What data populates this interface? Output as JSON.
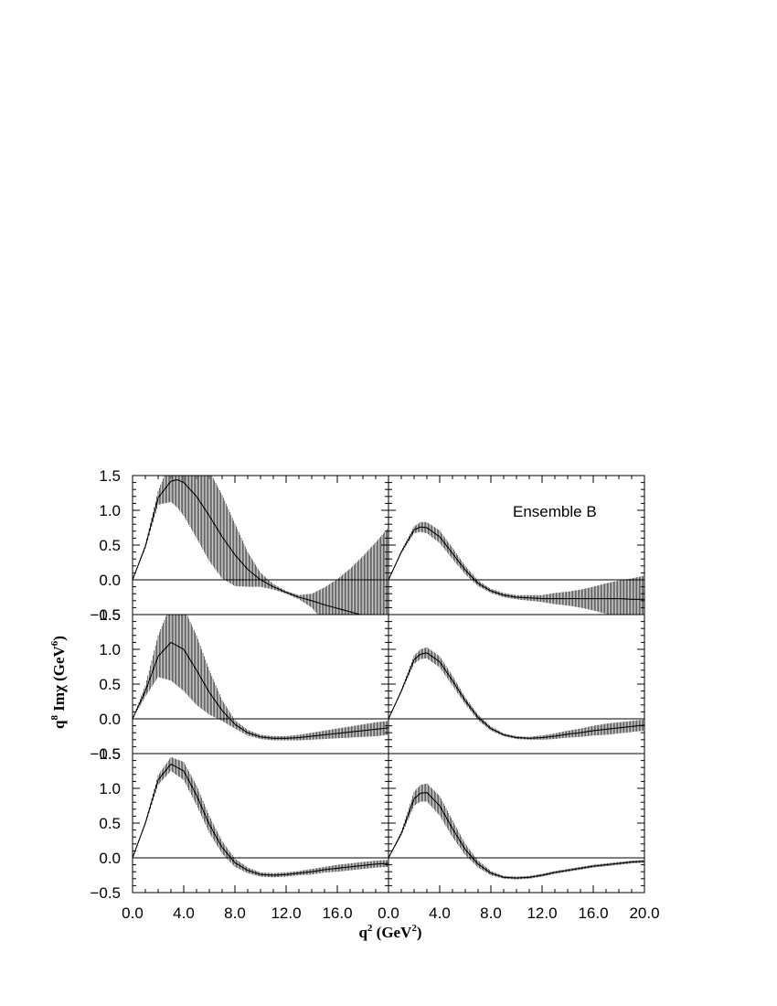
{
  "chart_data": {
    "type": "line",
    "layout": "3x2 grid of panels sharing axes",
    "xlabel": {
      "base": "q",
      "sup": "2",
      "rest": " (GeV",
      "sup2": "2",
      "end": ")"
    },
    "ylabel": {
      "base": "q",
      "sup": "8",
      "rest": " Imχ (GeV",
      "sup2": "6",
      "end": ")"
    },
    "xlim": [
      0,
      20
    ],
    "ylim": [
      -0.5,
      1.5
    ],
    "y_ticks": [
      "1.5",
      "1.0",
      "0.5",
      "0.0",
      "−0.5"
    ],
    "x_ticks_left": [
      "0.0",
      "4.0",
      "8.0",
      "12.0",
      "16.0"
    ],
    "x_ticks_right": [
      "0.0",
      "4.0",
      "8.0",
      "12.0",
      "16.0",
      "20.0"
    ],
    "annotation": "Ensemble B",
    "zero_line": true,
    "panels": [
      {
        "row": 1,
        "col": 1,
        "x": [
          0,
          1,
          2,
          3,
          3.5,
          4,
          5,
          6,
          7,
          8,
          9,
          10,
          11,
          12,
          13,
          14,
          15,
          16,
          17,
          18,
          19,
          20
        ],
        "y": [
          0,
          0.48,
          1.18,
          1.42,
          1.44,
          1.4,
          1.2,
          0.92,
          0.62,
          0.36,
          0.15,
          0,
          -0.1,
          -0.18,
          -0.25,
          -0.3,
          -0.36,
          -0.41,
          -0.46,
          -0.51,
          -0.56,
          -0.6
        ],
        "err": [
          0,
          0.03,
          0.1,
          0.3,
          0.4,
          0.48,
          0.6,
          0.65,
          0.6,
          0.45,
          0.25,
          0.1,
          0.04,
          0.02,
          0.03,
          0.1,
          0.25,
          0.42,
          0.62,
          0.85,
          1.1,
          1.35
        ]
      },
      {
        "row": 1,
        "col": 2,
        "x": [
          0,
          1,
          2,
          2.5,
          3,
          4,
          5,
          6,
          7,
          8,
          9,
          10,
          11,
          12,
          13,
          14,
          15,
          16,
          17,
          18,
          19,
          20
        ],
        "y": [
          0,
          0.4,
          0.72,
          0.76,
          0.75,
          0.62,
          0.38,
          0.14,
          -0.05,
          -0.16,
          -0.22,
          -0.25,
          -0.26,
          -0.27,
          -0.27,
          -0.27,
          -0.27,
          -0.27,
          -0.27,
          -0.27,
          -0.28,
          -0.28
        ],
        "err": [
          0,
          0.02,
          0.05,
          0.07,
          0.08,
          0.09,
          0.08,
          0.06,
          0.04,
          0.03,
          0.03,
          0.03,
          0.04,
          0.05,
          0.08,
          0.1,
          0.13,
          0.17,
          0.22,
          0.26,
          0.3,
          0.34
        ]
      },
      {
        "row": 2,
        "col": 1,
        "x": [
          0,
          1,
          2,
          3,
          4,
          5,
          6,
          7,
          8,
          9,
          10,
          11,
          12,
          13,
          14,
          15,
          16,
          17,
          18,
          19,
          20
        ],
        "y": [
          0,
          0.4,
          0.9,
          1.1,
          1.0,
          0.7,
          0.38,
          0.12,
          -0.08,
          -0.2,
          -0.26,
          -0.28,
          -0.28,
          -0.27,
          -0.25,
          -0.23,
          -0.21,
          -0.19,
          -0.17,
          -0.15,
          -0.13
        ],
        "err": [
          0,
          0.08,
          0.3,
          0.55,
          0.6,
          0.5,
          0.32,
          0.15,
          0.06,
          0.04,
          0.03,
          0.03,
          0.03,
          0.04,
          0.05,
          0.06,
          0.07,
          0.08,
          0.09,
          0.1,
          0.1
        ]
      },
      {
        "row": 2,
        "col": 2,
        "x": [
          0,
          1,
          2,
          2.5,
          3,
          4,
          5,
          6,
          7,
          8,
          9,
          10,
          11,
          12,
          13,
          14,
          15,
          16,
          17,
          18,
          19,
          20
        ],
        "y": [
          0,
          0.4,
          0.85,
          0.93,
          0.95,
          0.82,
          0.55,
          0.26,
          0.02,
          -0.14,
          -0.23,
          -0.27,
          -0.28,
          -0.27,
          -0.25,
          -0.22,
          -0.2,
          -0.17,
          -0.15,
          -0.13,
          -0.11,
          -0.09
        ],
        "err": [
          0,
          0.02,
          0.06,
          0.07,
          0.08,
          0.08,
          0.07,
          0.05,
          0.04,
          0.03,
          0.02,
          0.02,
          0.02,
          0.03,
          0.04,
          0.05,
          0.06,
          0.07,
          0.08,
          0.08,
          0.08,
          0.08
        ]
      },
      {
        "row": 3,
        "col": 1,
        "x": [
          0,
          1,
          2,
          3,
          4,
          5,
          6,
          7,
          8,
          9,
          10,
          11,
          12,
          13,
          14,
          15,
          16,
          17,
          18,
          19,
          20
        ],
        "y": [
          0,
          0.5,
          1.12,
          1.35,
          1.25,
          0.9,
          0.48,
          0.15,
          -0.07,
          -0.18,
          -0.24,
          -0.25,
          -0.24,
          -0.22,
          -0.2,
          -0.17,
          -0.15,
          -0.13,
          -0.11,
          -0.09,
          -0.08
        ],
        "err": [
          0,
          0.02,
          0.07,
          0.1,
          0.13,
          0.14,
          0.12,
          0.09,
          0.06,
          0.04,
          0.03,
          0.03,
          0.03,
          0.03,
          0.04,
          0.04,
          0.05,
          0.05,
          0.05,
          0.05,
          0.05
        ]
      },
      {
        "row": 3,
        "col": 2,
        "x": [
          0,
          1,
          2,
          2.5,
          3,
          4,
          5,
          6,
          7,
          8,
          9,
          10,
          11,
          12,
          13,
          14,
          15,
          16,
          17,
          18,
          19,
          20
        ],
        "y": [
          0,
          0.35,
          0.85,
          0.93,
          0.94,
          0.75,
          0.42,
          0.12,
          -0.09,
          -0.22,
          -0.28,
          -0.29,
          -0.28,
          -0.25,
          -0.21,
          -0.18,
          -0.15,
          -0.12,
          -0.1,
          -0.08,
          -0.06,
          -0.05
        ],
        "err": [
          0,
          0.03,
          0.1,
          0.12,
          0.13,
          0.14,
          0.12,
          0.08,
          0.05,
          0.03,
          0.02,
          0.02,
          0.02,
          0.02,
          0.02,
          0.02,
          0.02,
          0.02,
          0.02,
          0.02,
          0.02,
          0.02
        ]
      }
    ]
  }
}
